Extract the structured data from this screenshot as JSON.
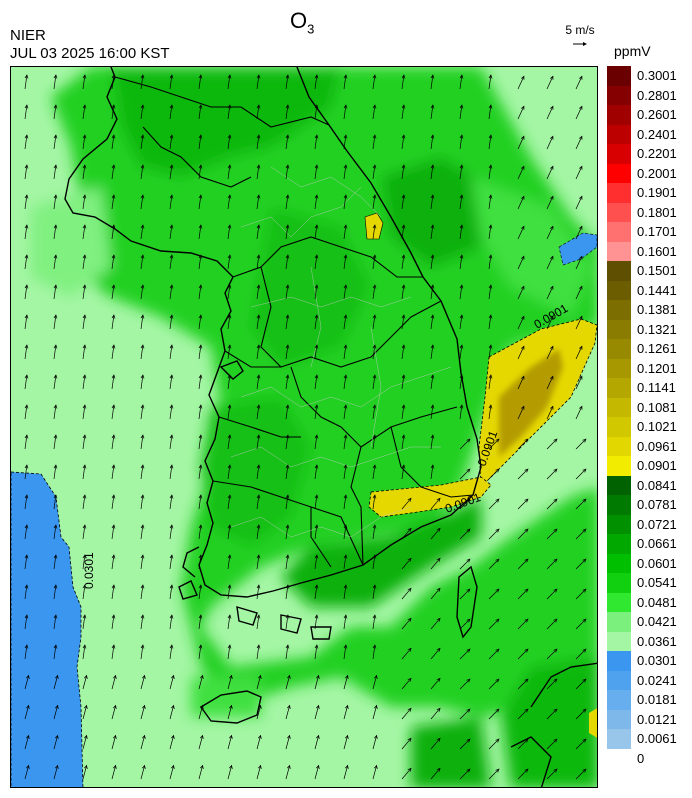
{
  "header": {
    "species": "O",
    "species_sub": "3",
    "agency": "NIER",
    "timestamp": "JUL 03 2025 16:00 KST"
  },
  "wind_scale": {
    "label": "5 m/s"
  },
  "legend": {
    "unit": "ppmV",
    "bins": [
      {
        "label": "0.3001",
        "color": "#6b0000"
      },
      {
        "label": "0.2801",
        "color": "#850000"
      },
      {
        "label": "0.2601",
        "color": "#a00000"
      },
      {
        "label": "0.2401",
        "color": "#bc0000"
      },
      {
        "label": "0.2201",
        "color": "#d80000"
      },
      {
        "label": "0.2001",
        "color": "#ff0000"
      },
      {
        "label": "0.1901",
        "color": "#ff2f2f"
      },
      {
        "label": "0.1801",
        "color": "#ff5050"
      },
      {
        "label": "0.1701",
        "color": "#ff7070"
      },
      {
        "label": "0.1601",
        "color": "#ff9393"
      },
      {
        "label": "0.1501",
        "color": "#5e5000"
      },
      {
        "label": "0.1441",
        "color": "#6c5e00"
      },
      {
        "label": "0.1381",
        "color": "#7c6e00"
      },
      {
        "label": "0.1321",
        "color": "#8a7c00"
      },
      {
        "label": "0.1261",
        "color": "#988a00"
      },
      {
        "label": "0.1201",
        "color": "#a89800"
      },
      {
        "label": "0.1141",
        "color": "#b4a800"
      },
      {
        "label": "0.1081",
        "color": "#c4b800"
      },
      {
        "label": "0.1021",
        "color": "#d2c800"
      },
      {
        "label": "0.0961",
        "color": "#e2d800"
      },
      {
        "label": "0.0901",
        "color": "#f2ec00"
      },
      {
        "label": "0.0841",
        "color": "#006200"
      },
      {
        "label": "0.0781",
        "color": "#007a00"
      },
      {
        "label": "0.0721",
        "color": "#009000"
      },
      {
        "label": "0.0661",
        "color": "#00a800"
      },
      {
        "label": "0.0601",
        "color": "#00be00"
      },
      {
        "label": "0.0541",
        "color": "#10d010"
      },
      {
        "label": "0.0481",
        "color": "#30e830"
      },
      {
        "label": "0.0421",
        "color": "#7cf07c"
      },
      {
        "label": "0.0361",
        "color": "#a4f6a4"
      },
      {
        "label": "0.0301",
        "color": "#3a96ee"
      },
      {
        "label": "0.0241",
        "color": "#4ea2ee"
      },
      {
        "label": "0.0181",
        "color": "#66aeee"
      },
      {
        "label": "0.0121",
        "color": "#7eb8ea"
      },
      {
        "label": "0.0061",
        "color": "#98c6ea"
      },
      {
        "label": "0",
        "color": "#ffffff"
      }
    ]
  },
  "contour_labels": {
    "east_sea": "0.0901",
    "south_coast": "0.0901",
    "busan": "0.0901",
    "west_sea": "0.0301"
  },
  "colors": {
    "land_green": "#00c800",
    "sea_light": "#a4f6a4",
    "blue_low": "#3a96ee",
    "yellow_high": "#e4d800",
    "olive_high": "#b4a000"
  }
}
